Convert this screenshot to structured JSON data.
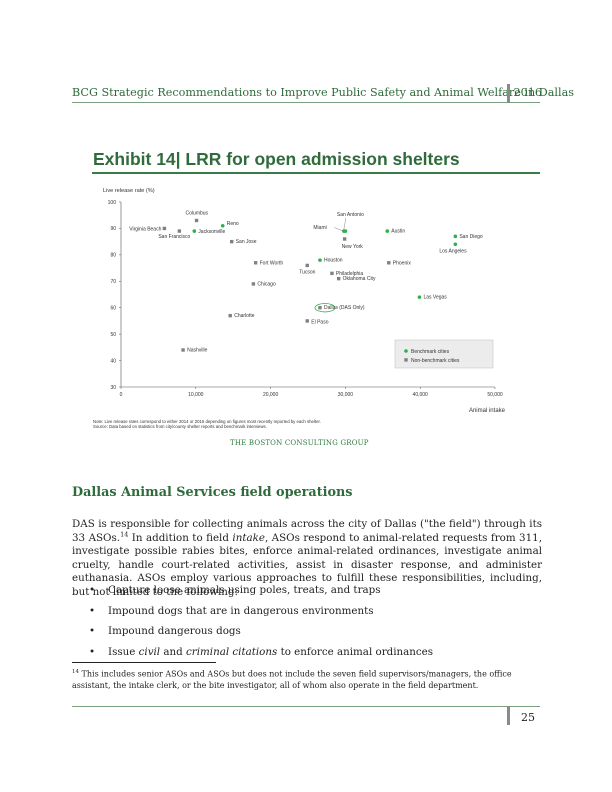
{
  "header": {
    "title": "BCG Strategic Recommendations to Improve Public Safety and Animal Welfare in Dallas",
    "year": "2016"
  },
  "exhibit": {
    "title": "Exhibit 14| LRR for open admission shelters",
    "note_1": "Note: Live release rates correspond to either 2014 or 2015 depending on figures most recently reported by each shelter.",
    "note_2": "Source: Data based on statistics from city/county shelter reports and benchmark interviews.",
    "logo": "THE BOSTON CONSULTING GROUP"
  },
  "chart_data": {
    "type": "scatter",
    "title": "",
    "xlabel": "Animal intake",
    "ylabel": "Live release rate (%)",
    "xlim": [
      0,
      50000
    ],
    "ylim": [
      30,
      100
    ],
    "xticks": [
      0,
      10000,
      20000,
      30000,
      40000,
      50000
    ],
    "xtick_labels": [
      "0",
      "10,000",
      "20,000",
      "30,000",
      "40,000",
      "50,000"
    ],
    "yticks": [
      30,
      40,
      50,
      60,
      70,
      80,
      90,
      100
    ],
    "ytick_labels": [
      "30",
      "40",
      "50",
      "60",
      "70",
      "80",
      "90",
      "100"
    ],
    "legend": {
      "placement": "bottom-right",
      "benchmark": "Benchmark cities",
      "non_benchmark": "Non-benchmark cities"
    },
    "colors": {
      "benchmark": "#2bb34a",
      "non_benchmark": "#808080",
      "highlight": "#2bb34a"
    },
    "points": [
      {
        "name": "Virginia Beach",
        "x": 5800,
        "y": 90,
        "group": "non_benchmark"
      },
      {
        "name": "Columbus",
        "x": 10100,
        "y": 93,
        "group": "non_benchmark"
      },
      {
        "name": "San Francisco",
        "x": 7800,
        "y": 89,
        "group": "non_benchmark"
      },
      {
        "name": "Jacksonville",
        "x": 9800,
        "y": 89,
        "group": "benchmark"
      },
      {
        "name": "Reno",
        "x": 13600,
        "y": 91,
        "group": "benchmark"
      },
      {
        "name": "San Jose",
        "x": 14800,
        "y": 85,
        "group": "non_benchmark"
      },
      {
        "name": "San Antonio",
        "x": 29800,
        "y": 89,
        "group": "benchmark"
      },
      {
        "name": "Miami",
        "x": 30000,
        "y": 89,
        "group": "benchmark"
      },
      {
        "name": "New York",
        "x": 29900,
        "y": 86,
        "group": "non_benchmark"
      },
      {
        "name": "Austin",
        "x": 35600,
        "y": 89,
        "group": "benchmark"
      },
      {
        "name": "San Diego",
        "x": 44700,
        "y": 87,
        "group": "benchmark"
      },
      {
        "name": "Los Angeles",
        "x": 44700,
        "y": 84,
        "group": "benchmark"
      },
      {
        "name": "Fort Worth",
        "x": 18000,
        "y": 77,
        "group": "non_benchmark"
      },
      {
        "name": "Houston",
        "x": 26600,
        "y": 78,
        "group": "benchmark"
      },
      {
        "name": "Tucson",
        "x": 24900,
        "y": 76,
        "group": "non_benchmark"
      },
      {
        "name": "Phoenix",
        "x": 35800,
        "y": 77,
        "group": "non_benchmark"
      },
      {
        "name": "Philadelphia",
        "x": 28200,
        "y": 73,
        "group": "non_benchmark"
      },
      {
        "name": "Oklahoma City",
        "x": 29100,
        "y": 71,
        "group": "non_benchmark"
      },
      {
        "name": "Chicago",
        "x": 17700,
        "y": 69,
        "group": "non_benchmark"
      },
      {
        "name": "Las Vegas",
        "x": 39900,
        "y": 64,
        "group": "benchmark"
      },
      {
        "name": "Dallas (DAS Only)",
        "x": 26600,
        "y": 60,
        "group": "non_benchmark",
        "highlight": true
      },
      {
        "name": "Charlotte",
        "x": 14600,
        "y": 57,
        "group": "non_benchmark"
      },
      {
        "name": "El Paso",
        "x": 24900,
        "y": 55,
        "group": "non_benchmark"
      },
      {
        "name": "Nashville",
        "x": 8300,
        "y": 44,
        "group": "non_benchmark"
      }
    ]
  },
  "section": {
    "heading": "Dallas Animal Services field operations",
    "p1_a": "DAS is responsible for collecting animals across the city of Dallas (\"the field\") through its 33 ASOs.",
    "p1_fnref": "14",
    "p1_b": " In addition to field ",
    "p1_intake": "intake",
    "p1_c": ", ASOs respond to animal-related requests from 311, investigate possible rabies bites, enforce animal-related ordinances, investigate animal cruelty, handle court-related activities, assist in disaster response, and administer euthanasia. ASOs employ various approaches to fulfill these responsibilities, including, but not limited to the following:",
    "bullet_glyph": "•",
    "bullets": [
      "Capture loose animals using poles, treats, and traps",
      "Impound dogs that are in dangerous environments",
      "Impound dangerous dogs"
    ],
    "b4_a": "Issue ",
    "b4_civil": "civil",
    "b4_and": " and ",
    "b4_criminal": "criminal citations",
    "b4_end": " to enforce animal ordinances"
  },
  "footnote": {
    "num": "14",
    "text": " This includes senior ASOs and ASOs but does not include the seven field supervisors/managers, the office assistant, the intake clerk, or the bite investigator, all of whom also operate in the field department."
  },
  "page_number": "25"
}
